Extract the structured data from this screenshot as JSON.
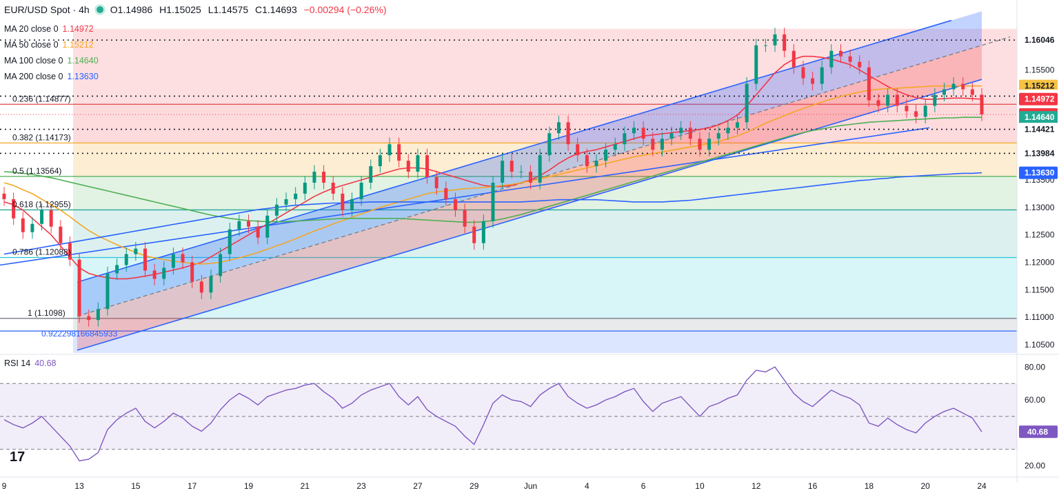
{
  "header": {
    "symbol": "EUR/USD Spot · 4h",
    "open": "O1.14986",
    "high": "H1.15025",
    "low": "L1.14575",
    "close": "C1.14693",
    "change": "−0.00294 (−0.26%)"
  },
  "moving_averages": [
    {
      "label": "MA 20 close 0",
      "value": "1.14972",
      "color": "#f23645"
    },
    {
      "label": "MA 50 close 0",
      "value": "1.15212",
      "color": "#f5a623"
    },
    {
      "label": "MA 100 close 0",
      "value": "1.14640",
      "color": "#4caf50"
    },
    {
      "label": "MA 200 close 0",
      "value": "1.13630",
      "color": "#2962ff"
    }
  ],
  "rsi": {
    "label": "RSI 14",
    "value": "40.68"
  },
  "logo": "17",
  "chart_data": {
    "type": "candlestick",
    "y_axis_ticks": [
      "1.15500",
      "1.15000",
      "1.14500",
      "1.14000",
      "1.13500",
      "1.13000",
      "1.12500",
      "1.12000",
      "1.11500",
      "1.11000",
      "1.10500"
    ],
    "y_axis_ticks_values": [
      1.155,
      1.15,
      1.145,
      1.14,
      1.135,
      1.13,
      1.125,
      1.12,
      1.115,
      1.11,
      1.105
    ],
    "ylim": [
      1.1035,
      1.1665
    ],
    "x_axis_ticks": [
      "9",
      "13",
      "15",
      "17",
      "19",
      "21",
      "23",
      "27",
      "29",
      "Jun",
      "4",
      "6",
      "10",
      "12",
      "16",
      "18",
      "20",
      "24"
    ],
    "x_axis_ticks_index": [
      0,
      8,
      14,
      20,
      26,
      32,
      38,
      44,
      50,
      56,
      62,
      68,
      74,
      80,
      86,
      92,
      98,
      104
    ],
    "price_labels": [
      {
        "text": "1.16046",
        "value": 1.16046,
        "bg": "#ffffff",
        "fg": "#131722"
      },
      {
        "text": "1.15212",
        "value": 1.15212,
        "bg": "#f5c242",
        "fg": "#131722"
      },
      {
        "text": "1.15025",
        "value": 1.15025,
        "bg": "#ffffff",
        "fg": "#131722"
      },
      {
        "text": "1.14972",
        "value": 1.14972,
        "bg": "#f23645",
        "fg": "#ffffff"
      },
      {
        "text": "1.14693",
        "value": 1.14693,
        "bg": "#f23645",
        "fg": "#ffffff"
      },
      {
        "text": "1.14640",
        "value": 1.1464,
        "bg": "#22ab94",
        "fg": "#ffffff"
      },
      {
        "text": "1.14421",
        "value": 1.14421,
        "bg": "#ffffff",
        "fg": "#131722"
      },
      {
        "text": "1.13984",
        "value": 1.13984,
        "bg": "#ffffff",
        "fg": "#131722"
      },
      {
        "text": "1.13630",
        "value": 1.1363,
        "bg": "#2962ff",
        "fg": "#ffffff"
      }
    ],
    "fib_levels": [
      {
        "label": "0.236 (1.14877)",
        "value": 1.14877,
        "color": "#e04848"
      },
      {
        "label": "0.382 (1.14173)",
        "value": 1.14173,
        "color": "#f5a623"
      },
      {
        "label": "0.5 (1.13564)",
        "value": 1.13564,
        "color": "#4caf50"
      },
      {
        "label": "0.618 (1.12955)",
        "value": 1.12955,
        "color": "#26a69a"
      },
      {
        "label": "0.786 (1.12088)",
        "value": 1.12088,
        "color": "#26c6da"
      },
      {
        "label": "1 (1.1098)",
        "value": 1.1098,
        "color": "#787b86"
      },
      {
        "label": "0.922298166845933",
        "value": 1.1075,
        "color": "#2962ff"
      }
    ],
    "dotted_levels": [
      1.16046,
      1.15025,
      1.14421,
      1.13984
    ],
    "candles_close": [
      1.1315,
      1.128,
      1.1255,
      1.127,
      1.1295,
      1.1265,
      1.1235,
      1.1205,
      1.1102,
      1.1095,
      1.1115,
      1.118,
      1.1195,
      1.1215,
      1.1225,
      1.1185,
      1.117,
      1.119,
      1.1215,
      1.12,
      1.1165,
      1.1145,
      1.1175,
      1.1215,
      1.126,
      1.1275,
      1.1265,
      1.1245,
      1.1285,
      1.1305,
      1.1315,
      1.1325,
      1.1345,
      1.1365,
      1.1345,
      1.1325,
      1.1295,
      1.1315,
      1.1345,
      1.1375,
      1.1395,
      1.1415,
      1.1385,
      1.1365,
      1.1395,
      1.1355,
      1.1335,
      1.1315,
      1.1295,
      1.1265,
      1.1235,
      1.1275,
      1.1345,
      1.1385,
      1.1365,
      1.1365,
      1.1345,
      1.1395,
      1.1435,
      1.1455,
      1.1415,
      1.1395,
      1.1375,
      1.1385,
      1.1405,
      1.1415,
      1.1435,
      1.1445,
      1.1425,
      1.1405,
      1.1425,
      1.1435,
      1.1445,
      1.1425,
      1.1405,
      1.1425,
      1.1435,
      1.1445,
      1.1455,
      1.1525,
      1.1595,
      1.1595,
      1.1615,
      1.1585,
      1.1555,
      1.1535,
      1.1525,
      1.1555,
      1.1585,
      1.1575,
      1.1565,
      1.1555,
      1.1495,
      1.1485,
      1.1505,
      1.1485,
      1.1475,
      1.1465,
      1.1485,
      1.1505,
      1.1515,
      1.1525,
      1.1515,
      1.1505,
      1.1469
    ],
    "series": [
      {
        "name": "MA 20 close 0",
        "color": "#f23645",
        "values": [
          1.131,
          1.1305,
          1.1295,
          1.128,
          1.1265,
          1.125,
          1.123,
          1.121,
          1.119,
          1.118,
          1.1175,
          1.1172,
          1.117,
          1.117,
          1.1172,
          1.1175,
          1.1178,
          1.1182,
          1.1186,
          1.119,
          1.1195,
          1.12,
          1.121,
          1.122,
          1.123,
          1.124,
          1.125,
          1.126,
          1.127,
          1.128,
          1.129,
          1.13,
          1.131,
          1.132,
          1.1328,
          1.1335,
          1.134,
          1.1345,
          1.135,
          1.1355,
          1.136,
          1.1365,
          1.137,
          1.1372,
          1.1372,
          1.137,
          1.1365,
          1.136,
          1.1355,
          1.135,
          1.1345,
          1.134,
          1.1338,
          1.1338,
          1.134,
          1.1345,
          1.135,
          1.1358,
          1.1368,
          1.138,
          1.139,
          1.1398,
          1.1402,
          1.1405,
          1.141,
          1.1415,
          1.142,
          1.1425,
          1.143,
          1.1432,
          1.1434,
          1.1436,
          1.1438,
          1.144,
          1.1442,
          1.1445,
          1.145,
          1.1458,
          1.1468,
          1.1485,
          1.1505,
          1.1525,
          1.1545,
          1.156,
          1.157,
          1.1575,
          1.1575,
          1.1573,
          1.157,
          1.1565,
          1.156,
          1.155,
          1.154,
          1.153,
          1.152,
          1.1512,
          1.1505,
          1.15,
          1.1497,
          1.1497,
          1.1498,
          1.1499,
          1.1499,
          1.1498,
          1.1497
        ]
      },
      {
        "name": "MA 50 close 0",
        "color": "#f5a623",
        "values": [
          1.1345,
          1.134,
          1.1332,
          1.1325,
          1.1315,
          1.1305,
          1.1295,
          1.1283,
          1.127,
          1.1258,
          1.1248,
          1.124,
          1.1232,
          1.1225,
          1.1218,
          1.1212,
          1.1208,
          1.1205,
          1.1202,
          1.12,
          1.1198,
          1.1197,
          1.1198,
          1.12,
          1.1204,
          1.1208,
          1.1213,
          1.1218,
          1.1224,
          1.123,
          1.1236,
          1.1243,
          1.125,
          1.1257,
          1.1263,
          1.127,
          1.1276,
          1.1282,
          1.1288,
          1.1294,
          1.13,
          1.1305,
          1.131,
          1.1315,
          1.132,
          1.1325,
          1.1328,
          1.133,
          1.1332,
          1.1334,
          1.1335,
          1.1336,
          1.1338,
          1.134,
          1.1342,
          1.1345,
          1.1348,
          1.1352,
          1.1356,
          1.136,
          1.1364,
          1.1368,
          1.1372,
          1.1376,
          1.138,
          1.1384,
          1.1388,
          1.1392,
          1.1395,
          1.1398,
          1.1401,
          1.1404,
          1.1407,
          1.141,
          1.1413,
          1.1416,
          1.142,
          1.1425,
          1.143,
          1.1437,
          1.1445,
          1.1453,
          1.146,
          1.1467,
          1.1474,
          1.148,
          1.1486,
          1.1492,
          1.1497,
          1.1502,
          1.1506,
          1.151,
          1.1513,
          1.1515,
          1.1516,
          1.1517,
          1.1518,
          1.1519,
          1.152,
          1.1521,
          1.1521,
          1.1521,
          1.1521,
          1.1521,
          1.1521
        ]
      },
      {
        "name": "MA 100 close 0",
        "color": "#4caf50",
        "values": [
          1.1365,
          1.1364,
          1.1362,
          1.136,
          1.1357,
          1.1354,
          1.135,
          1.1346,
          1.1342,
          1.1338,
          1.1334,
          1.133,
          1.1326,
          1.1322,
          1.1318,
          1.1314,
          1.131,
          1.1306,
          1.1302,
          1.1298,
          1.1294,
          1.129,
          1.1286,
          1.1283,
          1.128,
          1.1278,
          1.1276,
          1.1275,
          1.1274,
          1.1274,
          1.1274,
          1.1275,
          1.1276,
          1.1277,
          1.1278,
          1.1279,
          1.128,
          1.128,
          1.128,
          1.128,
          1.128,
          1.128,
          1.128,
          1.1279,
          1.1278,
          1.1277,
          1.1276,
          1.1275,
          1.1274,
          1.1273,
          1.1273,
          1.1274,
          1.1276,
          1.1279,
          1.1283,
          1.1287,
          1.1292,
          1.1297,
          1.1302,
          1.1307,
          1.1312,
          1.1317,
          1.1322,
          1.1327,
          1.1332,
          1.1337,
          1.1342,
          1.1347,
          1.1352,
          1.1357,
          1.1362,
          1.1367,
          1.1372,
          1.1377,
          1.1382,
          1.1387,
          1.1392,
          1.1397,
          1.1402,
          1.1407,
          1.1412,
          1.1417,
          1.1422,
          1.1427,
          1.1432,
          1.1436,
          1.144,
          1.1443,
          1.1446,
          1.1449,
          1.1451,
          1.1453,
          1.1455,
          1.1456,
          1.1457,
          1.1458,
          1.1459,
          1.146,
          1.1461,
          1.1462,
          1.1463,
          1.1463,
          1.1464,
          1.1464,
          1.1464
        ]
      },
      {
        "name": "MA 200 close 0",
        "color": "#2962ff",
        "values": [
          1.1215,
          1.1218,
          1.1221,
          1.1224,
          1.1227,
          1.123,
          1.1233,
          1.1236,
          1.1239,
          1.1242,
          1.1245,
          1.1248,
          1.1251,
          1.1254,
          1.1257,
          1.126,
          1.1263,
          1.1266,
          1.1269,
          1.1272,
          1.1275,
          1.1278,
          1.1281,
          1.1284,
          1.1287,
          1.129,
          1.1293,
          1.1296,
          1.1298,
          1.13,
          1.1302,
          1.1304,
          1.1305,
          1.1306,
          1.1307,
          1.1308,
          1.1308,
          1.1309,
          1.1309,
          1.131,
          1.131,
          1.131,
          1.131,
          1.131,
          1.131,
          1.131,
          1.131,
          1.131,
          1.131,
          1.131,
          1.131,
          1.131,
          1.131,
          1.131,
          1.131,
          1.131,
          1.1311,
          1.1312,
          1.1313,
          1.1314,
          1.1314,
          1.1314,
          1.1314,
          1.1314,
          1.1313,
          1.1312,
          1.1311,
          1.131,
          1.131,
          1.131,
          1.131,
          1.1311,
          1.1312,
          1.1313,
          1.1315,
          1.1317,
          1.1319,
          1.1321,
          1.1323,
          1.1325,
          1.1327,
          1.1329,
          1.1331,
          1.1333,
          1.1335,
          1.1337,
          1.1339,
          1.1341,
          1.1343,
          1.1345,
          1.1347,
          1.1349,
          1.135,
          1.1352,
          1.1353,
          1.1355,
          1.1356,
          1.1357,
          1.1358,
          1.1359,
          1.136,
          1.1361,
          1.1362,
          1.1362,
          1.1363
        ]
      }
    ],
    "rsi_series": [
      48,
      45,
      43,
      46,
      50,
      44,
      38,
      32,
      23,
      24,
      28,
      42,
      48,
      52,
      55,
      47,
      43,
      47,
      52,
      49,
      44,
      41,
      46,
      54,
      60,
      64,
      61,
      57,
      62,
      64,
      66,
      67,
      69,
      70,
      65,
      61,
      55,
      58,
      63,
      66,
      68,
      70,
      62,
      57,
      62,
      54,
      50,
      47,
      44,
      38,
      33,
      45,
      58,
      63,
      60,
      59,
      56,
      63,
      67,
      70,
      62,
      58,
      55,
      57,
      60,
      62,
      65,
      67,
      59,
      53,
      58,
      60,
      62,
      56,
      50,
      56,
      58,
      61,
      63,
      72,
      78,
      77,
      80,
      72,
      64,
      59,
      56,
      61,
      66,
      63,
      61,
      57,
      46,
      44,
      49,
      45,
      42,
      40,
      46,
      50,
      53,
      55,
      52,
      49,
      40.68
    ],
    "rsi_ticks": [
      "80.00",
      "60.00",
      "20.00"
    ],
    "rsi_ticks_values": [
      80,
      60,
      20
    ],
    "rsi_ylim": [
      14,
      86
    ],
    "rsi_bands": [
      70,
      50,
      30
    ],
    "colors": {
      "up": "#089981",
      "down": "#f23645",
      "channel": "#2962ff",
      "rsi": "#7e57c2"
    }
  }
}
